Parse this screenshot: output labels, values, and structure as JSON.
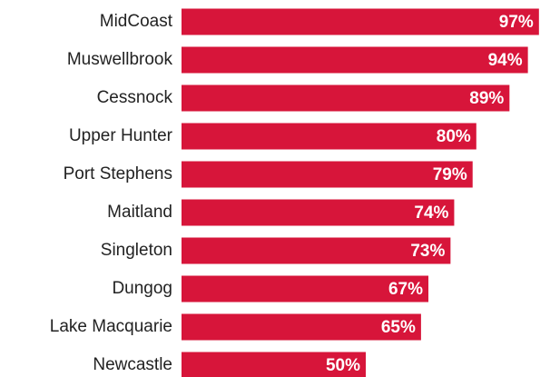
{
  "chart_data": {
    "type": "bar",
    "orientation": "horizontal",
    "categories": [
      "MidCoast",
      "Muswellbrook",
      "Cessnock",
      "Upper Hunter",
      "Port Stephens",
      "Maitland",
      "Singleton",
      "Dungog",
      "Lake Macquarie",
      "Newcastle"
    ],
    "values": [
      97,
      94,
      89,
      80,
      79,
      74,
      73,
      67,
      65,
      50
    ],
    "value_labels": [
      "97%",
      "94%",
      "89%",
      "80%",
      "79%",
      "74%",
      "73%",
      "67%",
      "65%",
      "50%"
    ],
    "color": "#d7153a",
    "xlim": [
      0,
      100
    ]
  }
}
